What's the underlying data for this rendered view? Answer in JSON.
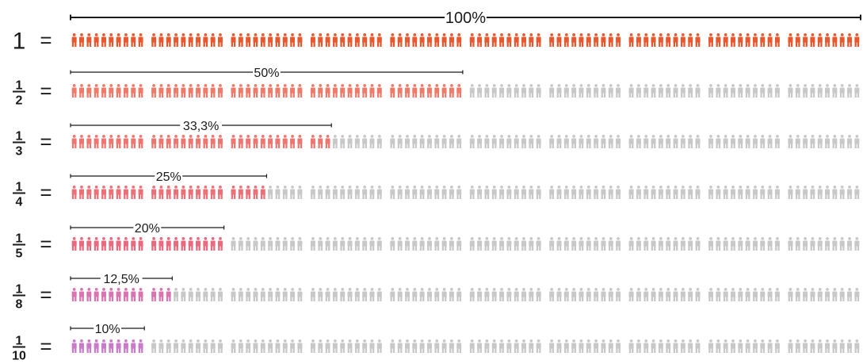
{
  "rows": [
    {
      "num": "1",
      "den": "",
      "label": "100%",
      "fraction": 1.0,
      "color": "#e8572e"
    },
    {
      "num": "1",
      "den": "2",
      "label": "50%",
      "fraction": 0.5,
      "color": "#f07a6a"
    },
    {
      "num": "1",
      "den": "3",
      "label": "33,3%",
      "fraction": 0.333,
      "color": "#ef7670"
    },
    {
      "num": "1",
      "den": "4",
      "label": "25%",
      "fraction": 0.25,
      "color": "#ec7077"
    },
    {
      "num": "1",
      "den": "5",
      "label": "20%",
      "fraction": 0.2,
      "color": "#e9697e"
    },
    {
      "num": "1",
      "den": "8",
      "label": "12,5%",
      "fraction": 0.125,
      "color": "#d875b1"
    },
    {
      "num": "1",
      "den": "10",
      "label": "10%",
      "fraction": 0.1,
      "color": "#c77bc8"
    }
  ],
  "equals_sign": "=",
  "figures_per_row": 100,
  "figures_per_group": 10,
  "inactive_color": "#c8c8c8",
  "line_color": "#1a1a1a"
}
